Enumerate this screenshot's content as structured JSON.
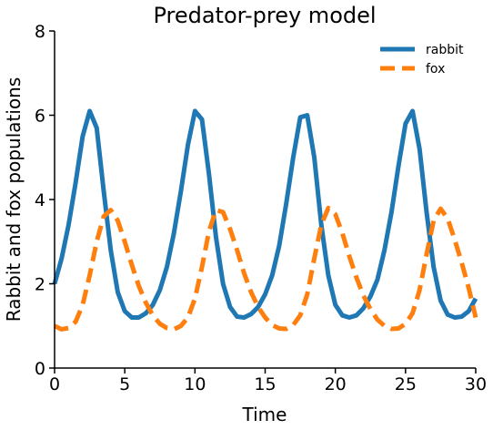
{
  "chart_data": {
    "type": "line",
    "title": "Predator-prey model",
    "xlabel": "Time",
    "ylabel": "Rabbit and fox populations",
    "xlim": [
      0,
      30
    ],
    "ylim": [
      0,
      8
    ],
    "xticks": [
      "0",
      "5",
      "10",
      "15",
      "20",
      "25",
      "30"
    ],
    "yticks": [
      "0",
      "2",
      "4",
      "6",
      "8"
    ],
    "grid": false,
    "legend_position": "top-right",
    "series": [
      {
        "name": "rabbit",
        "color": "#1f77b4",
        "style": "solid",
        "x": [
          0,
          0.5,
          1.0,
          1.5,
          2.0,
          2.5,
          3.0,
          3.5,
          4.0,
          4.5,
          5.0,
          5.5,
          6.0,
          6.5,
          7.0,
          7.5,
          8.0,
          8.5,
          9.0,
          9.5,
          10.0,
          10.5,
          11.0,
          11.5,
          12.0,
          12.5,
          13.0,
          13.5,
          14.0,
          14.5,
          15.0,
          15.5,
          16.0,
          16.5,
          17.0,
          17.5,
          18.0,
          18.5,
          19.0,
          19.5,
          20.0,
          20.5,
          21.0,
          21.5,
          22.0,
          22.5,
          23.0,
          23.5,
          24.0,
          24.5,
          25.0,
          25.5,
          26.0,
          26.5,
          27.0,
          27.5,
          28.0,
          28.5,
          29.0,
          29.5,
          30.0
        ],
        "y": [
          2.0,
          2.6,
          3.4,
          4.4,
          5.5,
          6.1,
          5.7,
          4.2,
          2.8,
          1.8,
          1.35,
          1.2,
          1.2,
          1.3,
          1.5,
          1.85,
          2.4,
          3.2,
          4.2,
          5.3,
          6.1,
          5.9,
          4.6,
          3.1,
          2.0,
          1.45,
          1.22,
          1.2,
          1.28,
          1.45,
          1.75,
          2.2,
          2.9,
          3.9,
          5.0,
          5.95,
          6.0,
          5.0,
          3.4,
          2.2,
          1.5,
          1.25,
          1.2,
          1.25,
          1.42,
          1.7,
          2.1,
          2.8,
          3.7,
          4.8,
          5.8,
          6.1,
          5.2,
          3.7,
          2.4,
          1.6,
          1.27,
          1.2,
          1.22,
          1.35,
          1.65
        ]
      },
      {
        "name": "fox",
        "color": "#ff7f0e",
        "style": "dashed",
        "x": [
          0,
          0.5,
          1.0,
          1.5,
          2.0,
          2.5,
          3.0,
          3.5,
          4.0,
          4.5,
          5.0,
          5.5,
          6.0,
          6.5,
          7.0,
          7.5,
          8.0,
          8.5,
          9.0,
          9.5,
          10.0,
          10.5,
          11.0,
          11.5,
          12.0,
          12.5,
          13.0,
          13.5,
          14.0,
          14.5,
          15.0,
          15.5,
          16.0,
          16.5,
          17.0,
          17.5,
          18.0,
          18.5,
          19.0,
          19.5,
          20.0,
          20.5,
          21.0,
          21.5,
          22.0,
          22.5,
          23.0,
          23.5,
          24.0,
          24.5,
          25.0,
          25.5,
          26.0,
          26.5,
          27.0,
          27.5,
          28.0,
          28.5,
          29.0,
          29.5,
          30.0
        ],
        "y": [
          1.0,
          0.92,
          0.95,
          1.1,
          1.5,
          2.2,
          3.0,
          3.6,
          3.75,
          3.5,
          3.0,
          2.45,
          1.95,
          1.55,
          1.25,
          1.05,
          0.95,
          0.92,
          1.0,
          1.2,
          1.65,
          2.4,
          3.25,
          3.75,
          3.7,
          3.3,
          2.8,
          2.25,
          1.8,
          1.45,
          1.2,
          1.02,
          0.94,
          0.93,
          1.02,
          1.25,
          1.75,
          2.6,
          3.4,
          3.8,
          3.65,
          3.2,
          2.65,
          2.15,
          1.72,
          1.4,
          1.15,
          1.0,
          0.93,
          0.94,
          1.05,
          1.3,
          1.85,
          2.7,
          3.5,
          3.78,
          3.55,
          3.05,
          2.5,
          1.9,
          1.2
        ]
      }
    ]
  }
}
